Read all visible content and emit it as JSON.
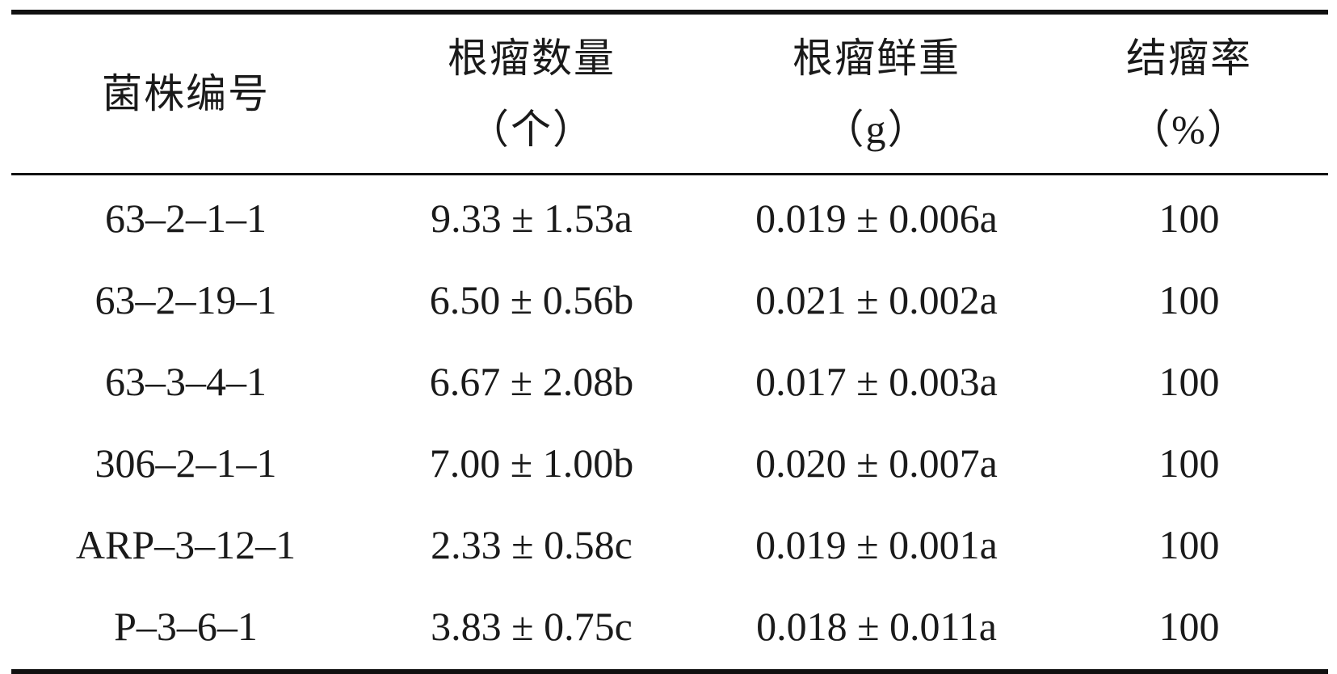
{
  "table": {
    "headers": [
      {
        "line1": "菌株编号",
        "line2": ""
      },
      {
        "line1": "根瘤数量",
        "line2": "（个）"
      },
      {
        "line1": "根瘤鲜重",
        "line2": "（g）"
      },
      {
        "line1": "结瘤率",
        "line2": "（%）"
      }
    ],
    "rows": [
      {
        "strain": "63–2–1–1",
        "count": "9.33 ± 1.53a",
        "weight": "0.019 ± 0.006a",
        "rate": "100"
      },
      {
        "strain": "63–2–19–1",
        "count": "6.50 ± 0.56b",
        "weight": "0.021 ± 0.002a",
        "rate": "100"
      },
      {
        "strain": "63–3–4–1",
        "count": "6.67 ± 2.08b",
        "weight": "0.017 ± 0.003a",
        "rate": "100"
      },
      {
        "strain": "306–2–1–1",
        "count": "7.00 ± 1.00b",
        "weight": "0.020 ± 0.007a",
        "rate": "100"
      },
      {
        "strain": "ARP–3–12–1",
        "count": "2.33 ± 0.58c",
        "weight": "0.019 ± 0.001a",
        "rate": "100"
      },
      {
        "strain": "P–3–6–1",
        "count": "3.83 ± 0.75c",
        "weight": "0.018 ± 0.011a",
        "rate": "100"
      }
    ]
  }
}
